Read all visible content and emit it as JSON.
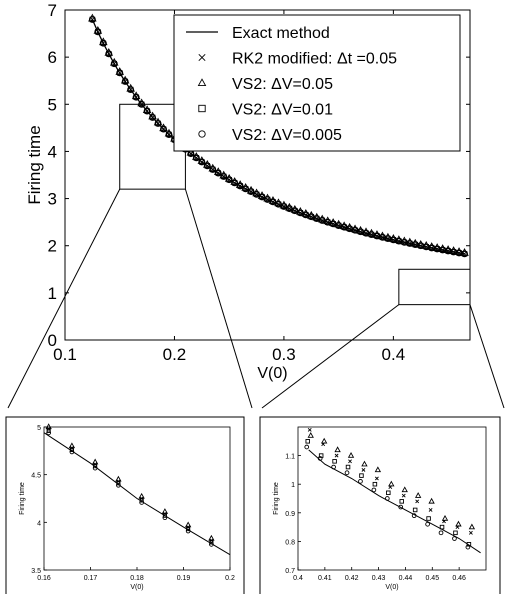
{
  "chart_data": {
    "type": "scatter",
    "function": "firing time T(V0) = -ln(1 - V0) / ... (approx), decreasing in V(0)",
    "main": {
      "xlabel": "V(0)",
      "ylabel": "Firing time",
      "xlim": [
        0.1,
        0.47
      ],
      "ylim": [
        0,
        7
      ],
      "xticks": [
        0.1,
        0.2,
        0.3,
        0.4
      ],
      "yticks": [
        0,
        1,
        2,
        3,
        4,
        5,
        6,
        7
      ],
      "legend_position": "top-right",
      "curve_x": [
        0.125,
        0.14,
        0.16,
        0.18,
        0.2,
        0.22,
        0.24,
        0.26,
        0.28,
        0.3,
        0.32,
        0.34,
        0.36,
        0.38,
        0.4,
        0.42,
        0.44,
        0.465
      ],
      "curve_y": [
        6.8,
        5.95,
        4.95,
        4.2,
        3.6,
        3.1,
        2.7,
        2.38,
        2.1,
        1.87,
        1.66,
        1.49,
        1.34,
        1.2,
        1.08,
        0.98,
        0.89,
        0.79
      ]
    },
    "series": [
      {
        "name": "Exact method",
        "marker": "line"
      },
      {
        "name": "RK2 modified: Δt =0.05",
        "marker": "x"
      },
      {
        "name": "VS2: ΔV=0.05",
        "marker": "triangle"
      },
      {
        "name": "VS2: ΔV=0.01",
        "marker": "square"
      },
      {
        "name": "VS2: ΔV=0.005",
        "marker": "circle"
      }
    ],
    "zoom_boxes": [
      {
        "xlim": [
          0.15,
          0.21
        ],
        "ylim": [
          3.2,
          5.0
        ]
      },
      {
        "xlim": [
          0.405,
          0.47
        ],
        "ylim": [
          0.75,
          1.5
        ]
      }
    ],
    "inset_left": {
      "xlabel": "V(0)",
      "ylabel": "Firing time",
      "xlim": [
        0.16,
        0.2
      ],
      "ylim": [
        3.5,
        5
      ],
      "xticks": [
        0.16,
        0.17,
        0.18,
        0.19,
        0.2
      ],
      "yticks": [
        3.5,
        4,
        4.5,
        5
      ],
      "xtick_labels": [
        "0.16",
        "0.17",
        "0.18",
        "0.19",
        "0.2"
      ],
      "ytick_labels": [
        "3.5",
        "4",
        "4.5",
        "5"
      ],
      "curve_x": [
        0.16,
        0.17,
        0.18,
        0.19,
        0.2
      ],
      "curve_y": [
        4.94,
        4.62,
        4.25,
        3.95,
        3.66
      ],
      "markers_x": [
        0.161,
        0.166,
        0.171,
        0.176,
        0.181,
        0.186,
        0.191,
        0.196
      ],
      "markers_y": [
        4.97,
        4.77,
        4.6,
        4.42,
        4.24,
        4.08,
        3.94,
        3.8
      ]
    },
    "inset_right": {
      "xlabel": "V(0)",
      "ylabel": "Firing time",
      "xlim": [
        0.4,
        0.47
      ],
      "ylim": [
        0.7,
        1.2
      ],
      "xticks": [
        0.4,
        0.41,
        0.42,
        0.43,
        0.44,
        0.45,
        0.46
      ],
      "yticks": [
        0.7,
        0.8,
        0.9,
        1.0,
        1.1
      ],
      "xtick_labels": [
        "0.4",
        "0.41",
        "0.42",
        "0.43",
        "0.44",
        "0.45",
        "0.46"
      ],
      "ytick_labels": [
        "0.7",
        "0.8",
        "0.9",
        "1",
        "1.1"
      ],
      "curve_x": [
        0.404,
        0.41,
        0.42,
        0.43,
        0.44,
        0.45,
        0.46,
        0.468
      ],
      "curve_y": [
        1.12,
        1.07,
        1.02,
        0.96,
        0.91,
        0.86,
        0.81,
        0.76
      ],
      "marker_x": [
        0.404,
        0.409,
        0.414,
        0.419,
        0.424,
        0.429,
        0.434,
        0.439,
        0.444,
        0.449,
        0.454,
        0.459,
        0.464
      ],
      "triangle_y": [
        1.17,
        1.15,
        1.12,
        1.1,
        1.07,
        1.05,
        1.0,
        0.98,
        0.96,
        0.94,
        0.88,
        0.86,
        0.85
      ],
      "x_y": [
        1.19,
        1.14,
        1.1,
        1.08,
        1.05,
        1.02,
        0.99,
        0.96,
        0.94,
        0.91,
        0.87,
        0.85,
        0.83
      ],
      "square_y": [
        1.15,
        1.1,
        1.08,
        1.06,
        1.03,
        1.0,
        0.97,
        0.94,
        0.91,
        0.88,
        0.85,
        0.83,
        0.79
      ],
      "circle_y": [
        1.13,
        1.09,
        1.06,
        1.04,
        1.01,
        0.98,
        0.95,
        0.92,
        0.89,
        0.86,
        0.83,
        0.81,
        0.78
      ]
    }
  }
}
